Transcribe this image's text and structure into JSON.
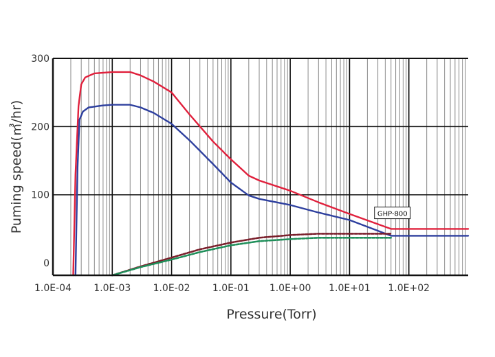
{
  "chart_data": {
    "type": "line",
    "xscale": "log",
    "xlabel": "Pressure(Torr)",
    "ylabel": "Puming speed(㎥/hr)",
    "xlim": [
      0.0001,
      1000
    ],
    "ylim": [
      -18,
      300
    ],
    "grid": true,
    "x_tick_labels": [
      {
        "value": 0.0001,
        "label": "1.0E-04"
      },
      {
        "value": 0.001,
        "label": "1.0E-03"
      },
      {
        "value": 0.01,
        "label": "1.0E-02"
      },
      {
        "value": 0.1,
        "label": "1.0E-01"
      },
      {
        "value": 1,
        "label": "1.0E+00"
      },
      {
        "value": 10,
        "label": "1.0E+01"
      },
      {
        "value": 100,
        "label": "1.0E+02"
      }
    ],
    "y_tick_labels": [
      {
        "value": 300,
        "label": "300"
      },
      {
        "value": 200,
        "label": "200"
      },
      {
        "value": 100,
        "label": "100"
      },
      {
        "value": 0,
        "label": "0"
      }
    ],
    "y_major_grid": [
      200,
      100
    ],
    "annotation": {
      "text": "GHP-800",
      "x": 50,
      "y": 73
    },
    "series": [
      {
        "color": "#e0203c",
        "style": "solid",
        "points": [
          [
            0.00022,
            -18
          ],
          [
            0.00024,
            130
          ],
          [
            0.00027,
            230
          ],
          [
            0.0003,
            262
          ],
          [
            0.00035,
            272
          ],
          [
            0.0005,
            278
          ],
          [
            0.001,
            280
          ],
          [
            0.002,
            280
          ],
          [
            0.003,
            275
          ],
          [
            0.005,
            266
          ],
          [
            0.01,
            250
          ],
          [
            0.02,
            218
          ],
          [
            0.05,
            178
          ],
          [
            0.1,
            152
          ],
          [
            0.15,
            138
          ],
          [
            0.2,
            128
          ],
          [
            0.3,
            121
          ],
          [
            1,
            106
          ],
          [
            3,
            89
          ],
          [
            10,
            72
          ],
          [
            50,
            50
          ],
          [
            1000,
            50
          ]
        ]
      },
      {
        "color": "#2d3f9e",
        "style": "solid",
        "points": [
          [
            0.00024,
            -18
          ],
          [
            0.00026,
            140
          ],
          [
            0.00028,
            210
          ],
          [
            0.00032,
            222
          ],
          [
            0.0004,
            228
          ],
          [
            0.0007,
            231
          ],
          [
            0.001,
            232
          ],
          [
            0.002,
            232
          ],
          [
            0.003,
            228
          ],
          [
            0.005,
            220
          ],
          [
            0.01,
            204
          ],
          [
            0.02,
            180
          ],
          [
            0.05,
            145
          ],
          [
            0.1,
            118
          ],
          [
            0.2,
            99
          ],
          [
            0.3,
            94
          ],
          [
            1,
            85
          ],
          [
            3,
            74
          ],
          [
            10,
            63
          ],
          [
            50,
            40
          ],
          [
            1000,
            40
          ]
        ]
      },
      {
        "color": "#7a1f2b",
        "style": "dashed",
        "points": [
          [
            0.001,
            -18
          ],
          [
            0.003,
            -5
          ],
          [
            0.01,
            8
          ],
          [
            0.03,
            20
          ],
          [
            0.1,
            30
          ],
          [
            0.3,
            37
          ],
          [
            1,
            41
          ],
          [
            3,
            43
          ],
          [
            10,
            43
          ],
          [
            50,
            43
          ]
        ]
      },
      {
        "color": "#1f8f5a",
        "style": "dashed",
        "points": [
          [
            0.001,
            -18
          ],
          [
            0.003,
            -6
          ],
          [
            0.01,
            5
          ],
          [
            0.03,
            16
          ],
          [
            0.1,
            26
          ],
          [
            0.3,
            32
          ],
          [
            1,
            35
          ],
          [
            3,
            37
          ],
          [
            10,
            37
          ],
          [
            50,
            37
          ]
        ]
      }
    ]
  }
}
